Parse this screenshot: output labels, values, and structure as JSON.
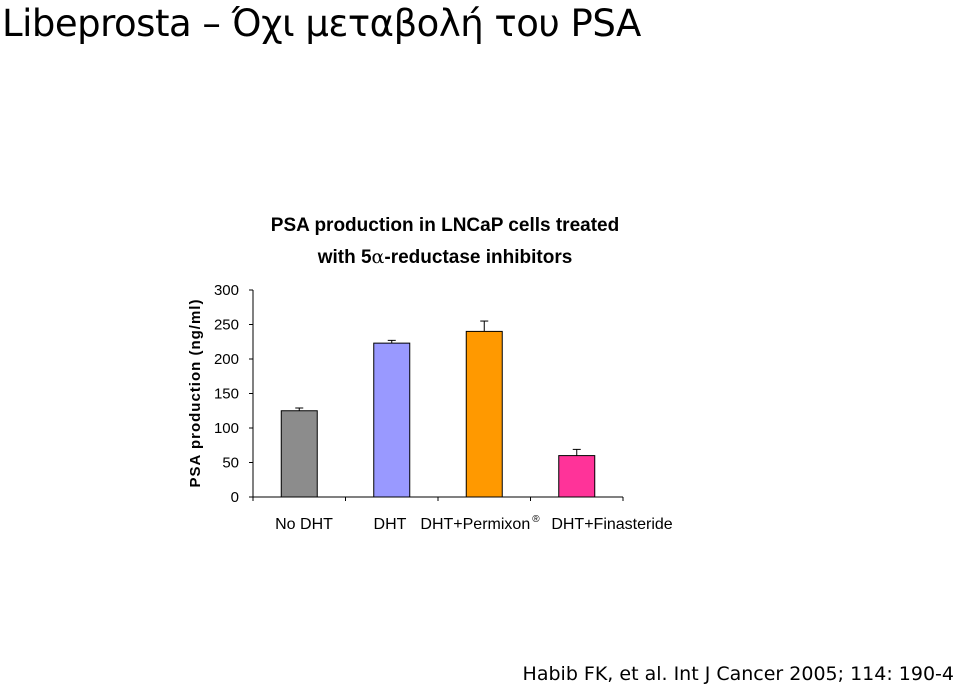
{
  "slide": {
    "title": "Libeprosta – Όχι μεταβολή του PSA",
    "citation": "Habib FK, et al. Int J Cancer 2005; 114: 190-4"
  },
  "chart_data": {
    "type": "bar",
    "title_lines": [
      "PSA production in LNCaP cells treated",
      "with 5α-reductase inhibitors"
    ],
    "ylabel": "PSA production (ng/ml)",
    "xlabel": "",
    "ylim": [
      0,
      300
    ],
    "yticks": [
      0,
      50,
      100,
      150,
      200,
      250,
      300
    ],
    "categories": [
      "No DHT",
      "DHT",
      "DHT+Permixon",
      "DHT+Finasteride"
    ],
    "category_superscripts": [
      "",
      "",
      "®",
      ""
    ],
    "values": [
      125,
      223,
      240,
      60
    ],
    "errors": [
      4,
      4,
      15,
      9
    ],
    "colors": [
      "#8c8c8c",
      "#9999ff",
      "#ff9900",
      "#ff3399"
    ],
    "grid": false,
    "legend": "none"
  }
}
